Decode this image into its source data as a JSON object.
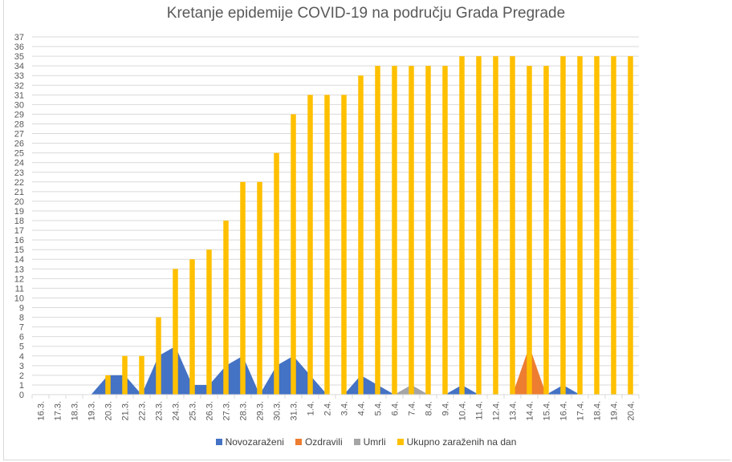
{
  "chart_data": {
    "type": "area",
    "title": "Kretanje epidemije COVID-19 na području Grada Pregrade",
    "xlabel": "",
    "ylabel": "",
    "ylim": [
      0,
      37
    ],
    "grid": true,
    "legend_position": "bottom",
    "categories": [
      "16.3.",
      "17.3.",
      "18.3.",
      "19.3.",
      "20.3.",
      "21.3.",
      "22.3.",
      "23.3.",
      "24.3.",
      "25.3.",
      "26.3.",
      "27.3.",
      "28.3.",
      "29.3.",
      "30.3.",
      "31.3.",
      "1.4.",
      "2.4.",
      "3.4.",
      "4.4.",
      "5.4.",
      "6.4.",
      "7.4.",
      "8.4.",
      "9.4.",
      "10.4.",
      "11.4.",
      "12.4.",
      "13.4.",
      "14.4.",
      "15.4.",
      "16.4.",
      "17.4.",
      "18.4.",
      "19.4.",
      "20.4."
    ],
    "yticks": [
      "0",
      "1",
      "2",
      "3",
      "4",
      "5",
      "6",
      "7",
      "8",
      "9",
      "10",
      "11",
      "12",
      "13",
      "14",
      "15",
      "16",
      "17",
      "18",
      "19",
      "20",
      "21",
      "22",
      "23",
      "24",
      "25",
      "26",
      "27",
      "28",
      "29",
      "30",
      "31",
      "32",
      "33",
      "34",
      "35",
      "36",
      "37"
    ],
    "series": [
      {
        "name": "Novozaraženi",
        "kind": "area",
        "color": "#4472c4",
        "values": [
          0,
          0,
          0,
          0,
          2,
          2,
          0,
          4,
          5,
          1,
          1,
          3,
          4,
          0,
          3,
          4,
          2,
          0,
          0,
          2,
          1,
          0,
          1,
          0,
          0,
          1,
          0,
          0,
          0,
          2,
          0,
          1,
          0,
          0,
          0,
          0
        ]
      },
      {
        "name": "Ozdravili",
        "kind": "area",
        "color": "#ed7d31",
        "values": [
          0,
          0,
          0,
          0,
          0,
          0,
          0,
          0,
          0,
          0,
          0,
          0,
          0,
          0,
          0,
          0,
          0,
          0,
          0,
          0,
          0,
          0,
          0,
          0,
          0,
          0,
          0,
          0,
          0,
          5,
          0,
          0,
          0,
          0,
          0,
          0
        ]
      },
      {
        "name": "Umrli",
        "kind": "area",
        "color": "#a5a5a5",
        "values": [
          0,
          0,
          0,
          0,
          0,
          0,
          0,
          0,
          0,
          0,
          0,
          0,
          0,
          0,
          0,
          0,
          0,
          0,
          0,
          0,
          0,
          0,
          1,
          0,
          0,
          0,
          0,
          0,
          0,
          0,
          0,
          0,
          0,
          0,
          0,
          0
        ]
      },
      {
        "name": "Ukupno zaraženih na dan",
        "kind": "bar",
        "color": "#ffc000",
        "values": [
          0,
          0,
          0,
          0,
          2,
          4,
          4,
          8,
          13,
          14,
          15,
          18,
          22,
          22,
          25,
          29,
          31,
          31,
          31,
          33,
          34,
          34,
          34,
          34,
          34,
          35,
          35,
          35,
          35,
          34,
          34,
          35,
          35,
          35,
          35,
          35
        ]
      }
    ]
  }
}
